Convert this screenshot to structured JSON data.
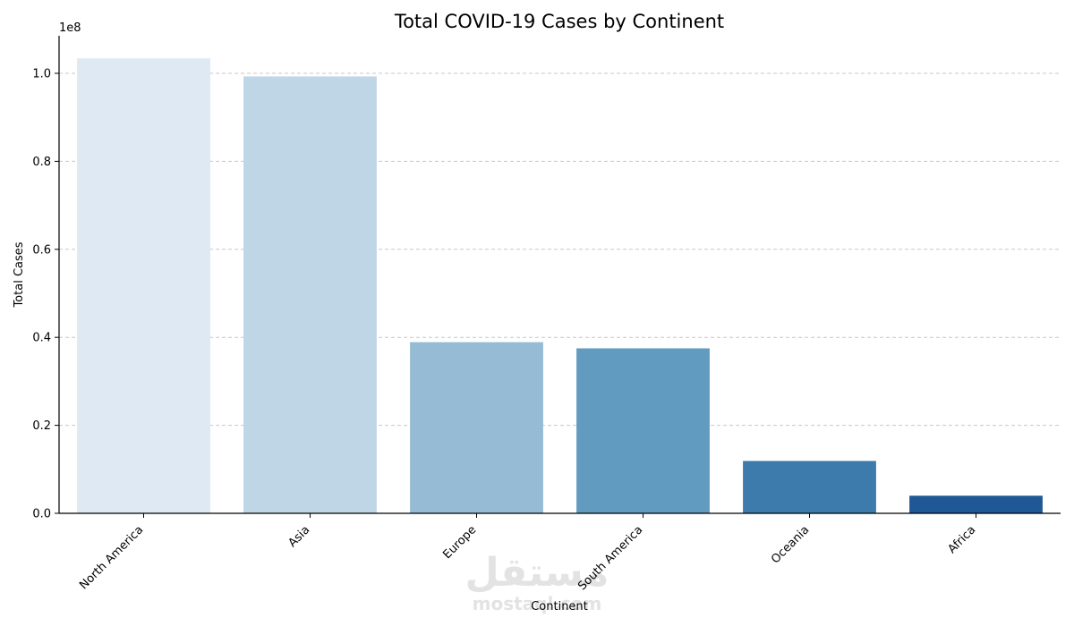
{
  "chart_data": {
    "type": "bar",
    "title": "Total COVID-19 Cases by Continent",
    "xlabel": "Continent",
    "ylabel": "Total Cases",
    "y_offset_label": "1e8",
    "y_scale": 100000000,
    "ylim": [
      0,
      108000000
    ],
    "y_ticks": [
      0,
      20000000,
      40000000,
      60000000,
      80000000,
      100000000
    ],
    "y_tick_labels": [
      "0.0",
      "0.2",
      "0.4",
      "0.6",
      "0.8",
      "1.0"
    ],
    "grid": "y-dashed",
    "categories": [
      "North America",
      "Asia",
      "Europe",
      "South America",
      "Oceania",
      "Africa"
    ],
    "values": [
      103400000,
      99300000,
      38900000,
      37500000,
      11900000,
      4000000
    ],
    "colors": [
      "#dee9f4",
      "#bfd6e6",
      "#95bcd4",
      "#629bc0",
      "#3d7bad",
      "#1f5894"
    ]
  },
  "watermark": {
    "arabic": "مستقل",
    "latin": "mostaql.com"
  }
}
